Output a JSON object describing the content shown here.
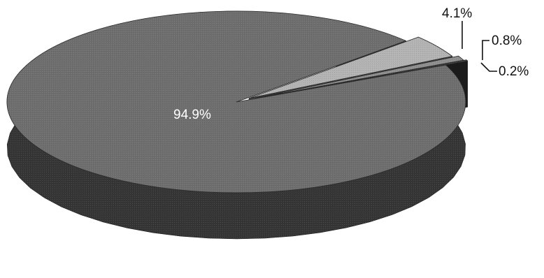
{
  "chart_data": {
    "type": "pie",
    "title": "",
    "style": "3d-exploded",
    "slices": [
      {
        "label": "94.9%",
        "value": 94.9,
        "color": "#6e6e6e",
        "label_color": "#ffffff"
      },
      {
        "label": "4.1%",
        "value": 4.1,
        "color": "#b3b3b3",
        "label_color": "#111111"
      },
      {
        "label": "0.8%",
        "value": 0.8,
        "color": "#8f8f8f",
        "label_color": "#111111"
      },
      {
        "label": "0.2%",
        "value": 0.2,
        "color": "#474747",
        "label_color": "#111111"
      }
    ],
    "legend": "none",
    "grid": false
  }
}
